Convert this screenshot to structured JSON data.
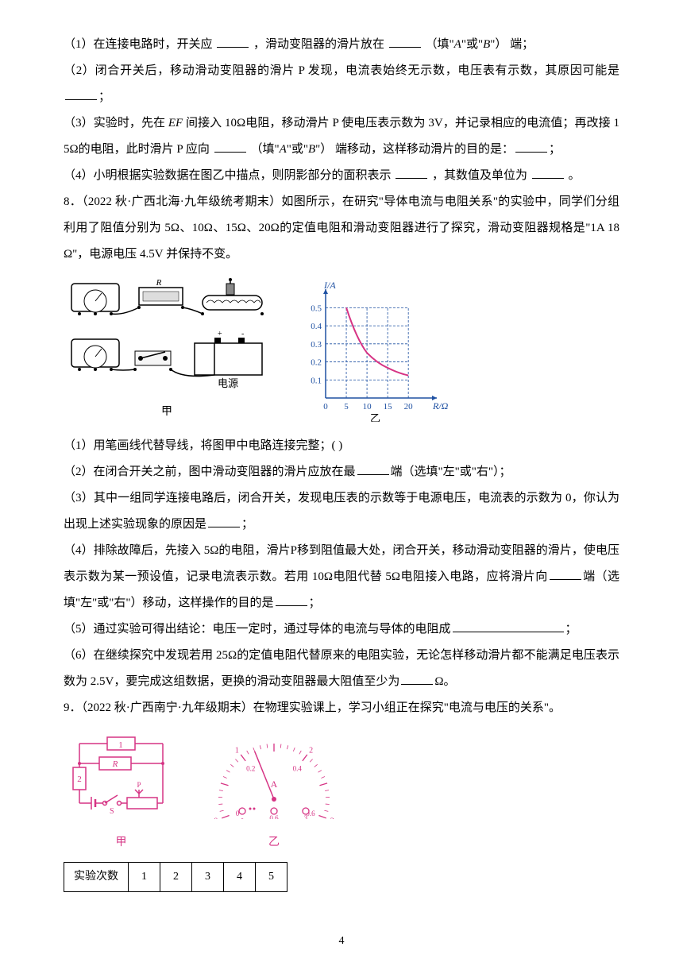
{
  "q7": {
    "p1_a": "（1）在连接电路时，开关应 ",
    "p1_b": " ，滑动变阻器的滑片放在 ",
    "p1_c": " （填\"",
    "p1_italic1": "A",
    "p1_d": "\"或\"",
    "p1_italic2": "B",
    "p1_e": "\"） 端；",
    "p2_a": "（2）闭合开关后，移动滑动变阻器的滑片 P 发现，电流表始终无示数，电压表有示数，其原因可能是 ",
    "p2_b": "；",
    "p3_a": "（3）实验时，先在 ",
    "p3_italic": "EF",
    "p3_b": " 间接入 10Ω电阻，移动滑片 P 使电压表示数为 3V，并记录相应的电流值；再改接 15Ω的电阻，此时滑片 P 应向 ",
    "p3_c": " （填\"",
    "p3_italic2": "A",
    "p3_d": "\"或\"",
    "p3_italic3": "B",
    "p3_e": "\"） 端移动，这样移动滑片的目的是：",
    "p3_f": "；",
    "p4_a": "（4）小明根据实验数据在图乙中描点，则阴影部分的面积表示 ",
    "p4_b": " ，其数值及单位为 ",
    "p4_c": " 。"
  },
  "q8": {
    "intro": "8．（2022 秋·广西北海·九年级统考期末）如图所示，在研究\"导体电流与电阻关系\"的实验中，同学们分组利用了阻值分别为 5Ω、10Ω、15Ω、20Ω的定值电阻和滑动变阻器进行了探究，滑动变阻器规格是\"1A 18Ω\"，电源电压 4.5V 并保持不变。",
    "fig_label_left": "甲",
    "fig_label_right": "乙",
    "battery_label": "电源",
    "resistor_label": "R",
    "chart": {
      "ylabel": "I/A",
      "xlabel": "R/Ω",
      "yticks": [
        "0.1",
        "0.2",
        "0.3",
        "0.4",
        "0.5"
      ],
      "xticks": [
        "0",
        "5",
        "10",
        "15",
        "20"
      ],
      "curve_color": "#d63384",
      "grid_color": "#1e50a2",
      "axis_color": "#1e50a2",
      "bg_color": "#ffffff",
      "x_max": 24,
      "y_max": 0.55,
      "points": [
        {
          "x": 5,
          "y": 0.5
        },
        {
          "x": 10,
          "y": 0.25
        },
        {
          "x": 15,
          "y": 0.167
        },
        {
          "x": 20,
          "y": 0.125
        }
      ]
    },
    "p1": "（1）用笔画线代替导线，将图甲中电路连接完整；(          )",
    "p2_a": "（2）在闭合开关之前，图中滑动变阻器的滑片应放在最",
    "p2_b": "端（选填\"左\"或\"右\"）；",
    "p3_a": "（3）其中一组同学连接电路后，闭合开关，发现电压表的示数等于电源电压，电流表的示数为 0，你认为出现上述实验现象的原因是",
    "p3_b": "；",
    "p4_a": "（4）排除故障后，先接入 5Ω的电阻，滑片P移到阻值最大处，闭合开关，移动滑动变阻器的滑片，使电压表示数为某一预设值，记录电流表示数。若用 10Ω电阻代替 5Ω电阻接入电路，应将滑片向",
    "p4_b": "端（选填\"左\"或\"右\"）移动，这样操作的目的是",
    "p4_c": "；",
    "p5_a": "（5）通过实验可得出结论：电压一定时，通过导体的电流与导体的电阻成",
    "p5_b": "；",
    "p6_a": "（6）在继续探究中发现若用 25Ω的定值电阻代替原来的电阻实验，无论怎样移动滑片都不能满足电压表示数为 2.5V，要完成这组数据，更换的滑动变阻器最大阻值至少为",
    "p6_b": "Ω。"
  },
  "q9": {
    "intro": "9．（2022 秋·广西南宁·九年级期末）在物理实验课上，学习小组正在探究\"电流与电压的关系\"。",
    "fig_label_left": "甲",
    "fig_label_right": "乙",
    "circuit": {
      "R_label": "R",
      "S_label": "S",
      "P_label": "P"
    },
    "ammeter": {
      "top_scale": [
        "0",
        "1",
        "2",
        "3"
      ],
      "bottom_scale": [
        "0",
        "0.2",
        "0.4",
        "0.6"
      ],
      "terminals": [
        "-",
        "0.6",
        "3"
      ],
      "unit": "A"
    },
    "table": {
      "header": "实验次数",
      "cols": [
        "1",
        "2",
        "3",
        "4",
        "5"
      ]
    }
  },
  "page_number": "4"
}
